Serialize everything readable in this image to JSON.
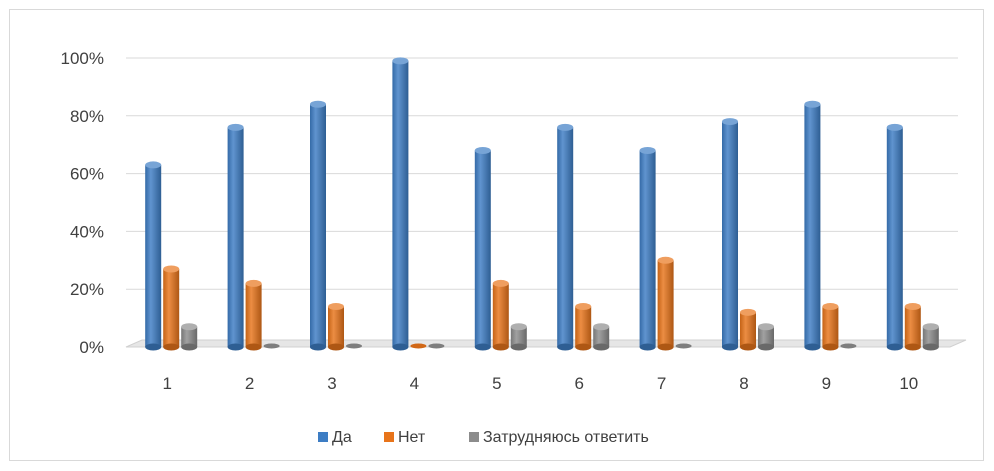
{
  "chart_data": {
    "type": "bar",
    "categories": [
      "1",
      "2",
      "3",
      "4",
      "5",
      "6",
      "7",
      "8",
      "9",
      "10"
    ],
    "series": [
      {
        "name": "Да",
        "values": [
          63,
          76,
          84,
          99,
          68,
          76,
          68,
          78,
          84,
          76
        ],
        "color": "#3d7dc4"
      },
      {
        "name": "Нет",
        "values": [
          27,
          22,
          14,
          0,
          22,
          14,
          30,
          12,
          14,
          14
        ],
        "color": "#e8741a"
      },
      {
        "name": "Затрудняюсь ответить",
        "values": [
          7,
          0,
          0,
          0,
          7,
          7,
          0,
          7,
          0,
          7
        ],
        "color": "#8c8c8c"
      }
    ],
    "y_ticks": [
      "0%",
      "20%",
      "40%",
      "60%",
      "80%",
      "100%"
    ],
    "ylim": [
      0,
      100
    ],
    "y_unit": "%",
    "grid": true,
    "legend_position": "bottom-center",
    "style": "3d-cylinder"
  }
}
